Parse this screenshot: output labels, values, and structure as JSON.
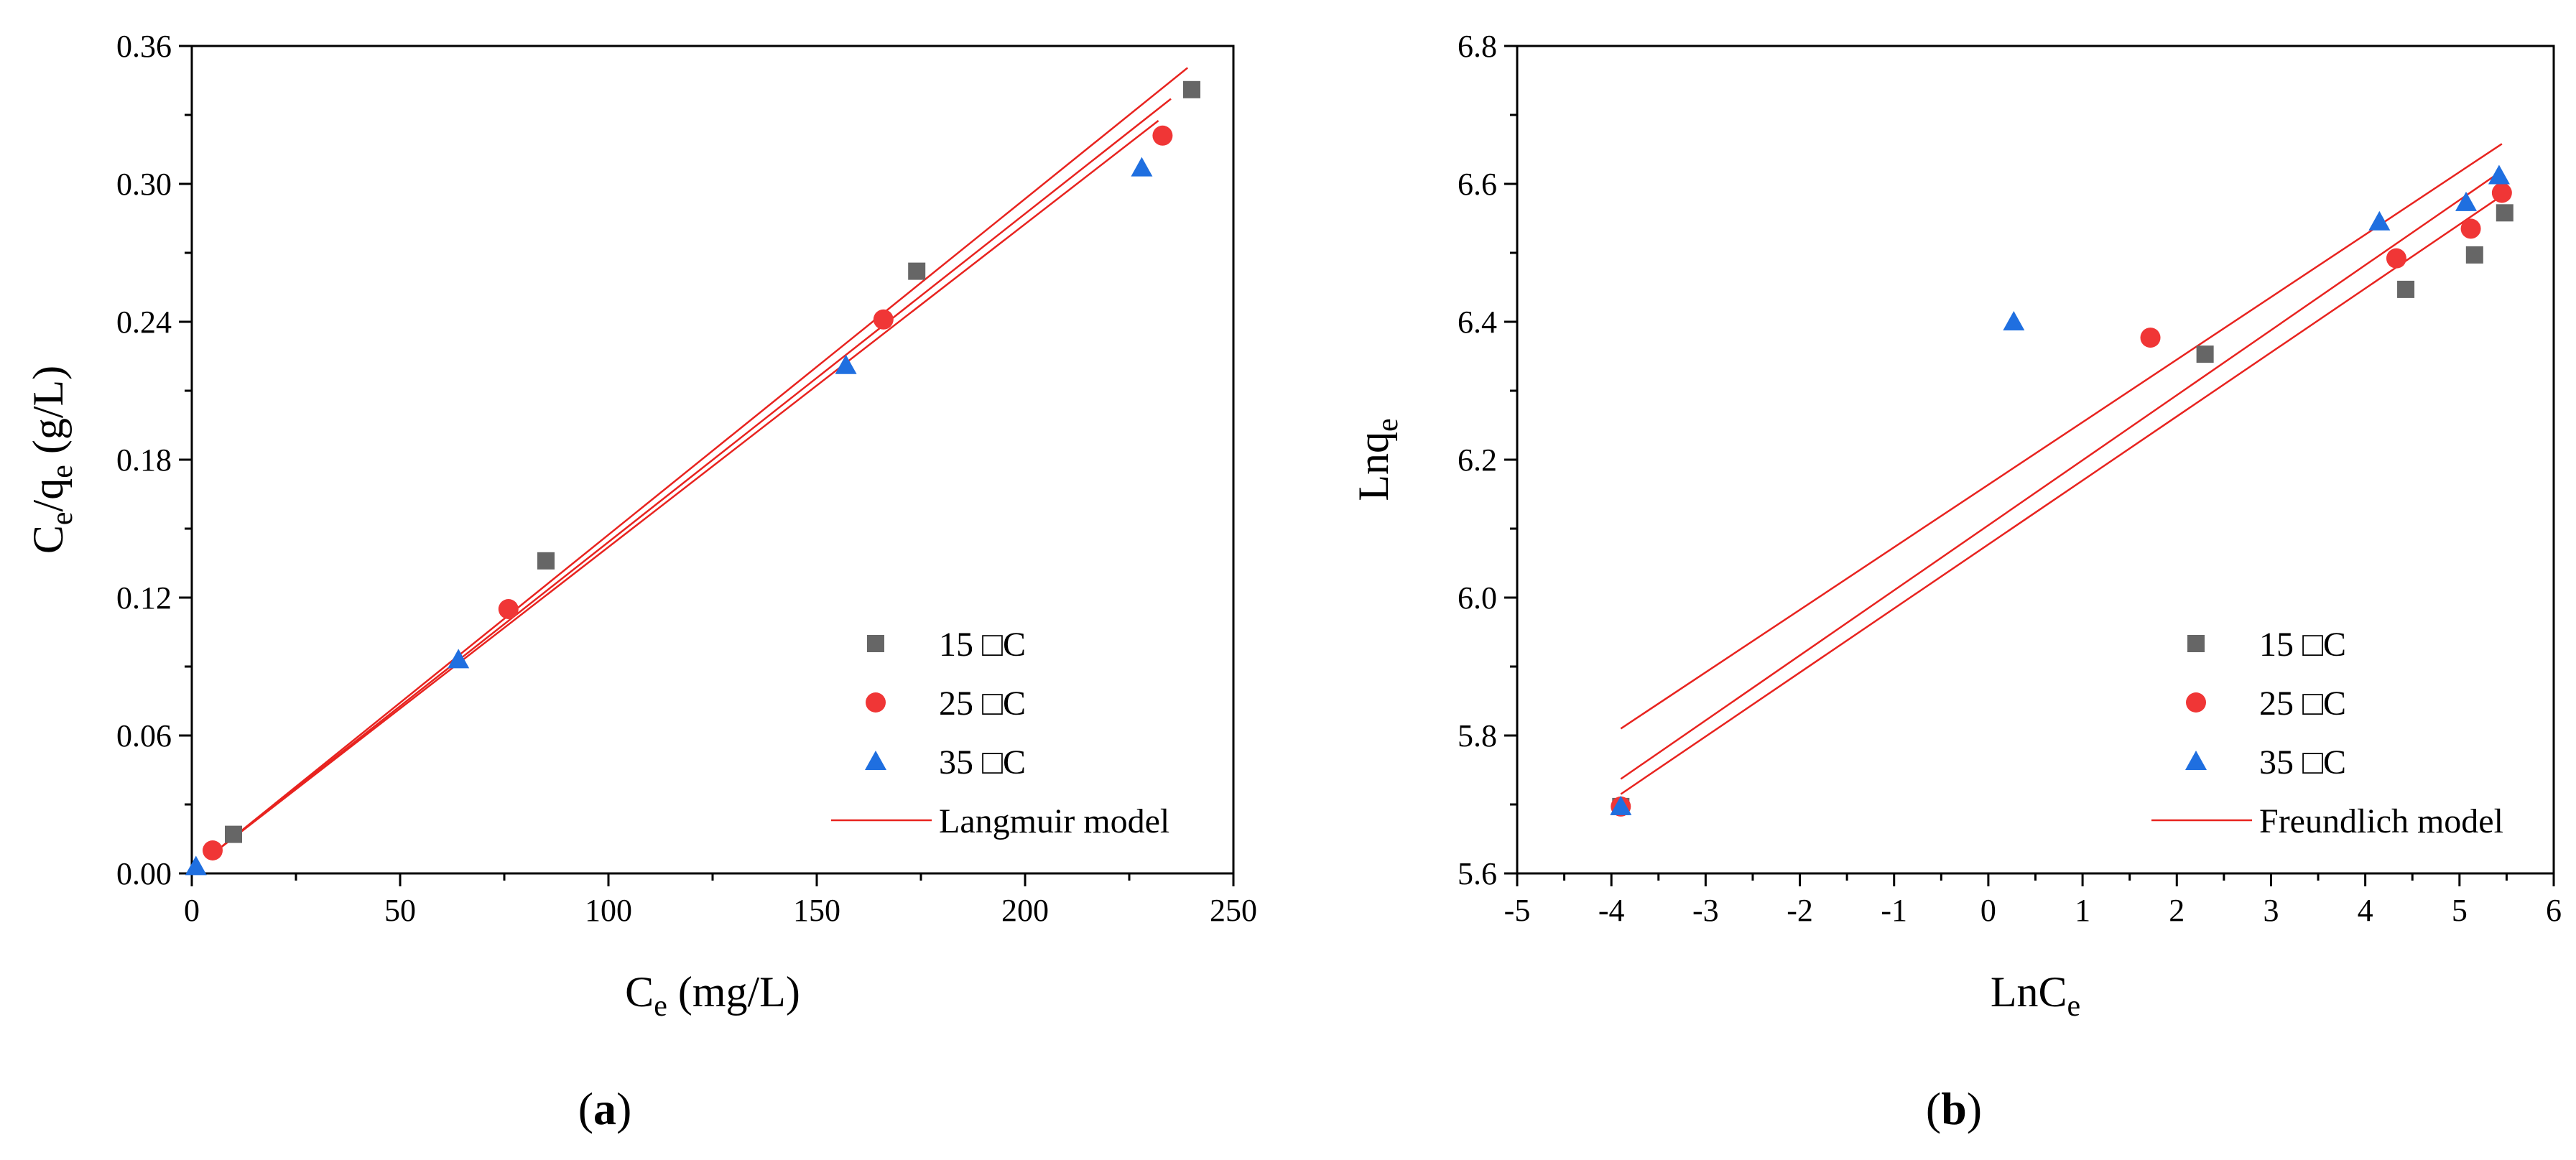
{
  "chart_data": [
    {
      "type": "scatter",
      "panel_label": "a",
      "title": "",
      "xlabel": {
        "main": "C",
        "sub": "e",
        "rest": " (mg/L)"
      },
      "ylabel": {
        "p1": "C",
        "s1": "e",
        "p2": "/q",
        "s2": "e",
        "p3": " (g/L)"
      },
      "xlim": [
        0,
        250
      ],
      "ylim": [
        0,
        0.36
      ],
      "xticks": [
        0,
        50,
        100,
        150,
        200,
        250
      ],
      "xtick_labels": [
        "0",
        "50",
        "100",
        "150",
        "200",
        "250"
      ],
      "yticks": [
        0,
        0.06,
        0.12,
        0.18,
        0.24,
        0.3,
        0.36
      ],
      "ytick_labels": [
        "0.00",
        "0.06",
        "0.12",
        "0.18",
        "0.24",
        "0.30",
        "0.36"
      ],
      "grid": false,
      "legend_position": "bottom-right",
      "series": [
        {
          "name": "15 □C",
          "marker": "square",
          "color": "#666666",
          "x": [
            10,
            85,
            174,
            240
          ],
          "y": [
            0.017,
            0.136,
            0.262,
            0.341
          ]
        },
        {
          "name": "25 □C",
          "marker": "circle",
          "color": "#f03636",
          "x": [
            5,
            76,
            166,
            233
          ],
          "y": [
            0.01,
            0.115,
            0.241,
            0.321
          ]
        },
        {
          "name": "35 □C",
          "marker": "triangle",
          "color": "#1f6fe0",
          "x": [
            1,
            64,
            157,
            228
          ],
          "y": [
            0.003,
            0.093,
            0.221,
            0.307
          ]
        }
      ],
      "fits": [
        {
          "x": [
            5,
            239
          ],
          "y": [
            0.0085,
            0.3505
          ]
        },
        {
          "x": [
            5,
            235
          ],
          "y": [
            0.0085,
            0.337
          ]
        },
        {
          "x": [
            5,
            232
          ],
          "y": [
            0.0085,
            0.3275
          ]
        }
      ],
      "fit_legend": "Langmuir model",
      "fit_color": "#e8231f"
    },
    {
      "type": "scatter",
      "panel_label": "b",
      "title": "",
      "xlabel": {
        "main": "LnC",
        "sub": "e",
        "rest": ""
      },
      "ylabel": {
        "main": "Lnq",
        "sub": "e"
      },
      "xlim": [
        -5,
        6
      ],
      "ylim": [
        5.6,
        6.8
      ],
      "xticks": [
        -5,
        -4,
        -3,
        -2,
        -1,
        0,
        1,
        2,
        3,
        4,
        5,
        6
      ],
      "xtick_labels": [
        "-5",
        "-4",
        "-3",
        "-2",
        "-1",
        "0",
        "1",
        "2",
        "3",
        "4",
        "5",
        "6"
      ],
      "yticks": [
        5.6,
        5.8,
        6.0,
        6.2,
        6.4,
        6.6,
        6.8
      ],
      "ytick_labels": [
        "5.6",
        "5.8",
        "6.0",
        "6.2",
        "6.4",
        "6.6",
        "6.8"
      ],
      "grid": false,
      "legend_position": "bottom-right",
      "series": [
        {
          "name": "15 □C",
          "marker": "square",
          "color": "#666666",
          "x": [
            -3.9,
            2.3,
            4.43,
            5.16,
            5.48
          ],
          "y": [
            5.697,
            6.353,
            6.447,
            6.497,
            6.558
          ]
        },
        {
          "name": "25 □C",
          "marker": "circle",
          "color": "#f03636",
          "x": [
            -3.9,
            1.72,
            4.33,
            5.12,
            5.45
          ],
          "y": [
            5.697,
            6.377,
            6.492,
            6.535,
            6.587
          ]
        },
        {
          "name": "35 □C",
          "marker": "triangle",
          "color": "#1f6fe0",
          "x": [
            -3.9,
            0.27,
            4.15,
            5.07,
            5.42
          ],
          "y": [
            5.697,
            6.4,
            6.545,
            6.573,
            6.612
          ]
        }
      ],
      "fits": [
        {
          "x": [
            -3.9,
            5.45
          ],
          "y": [
            5.81,
            6.658
          ]
        },
        {
          "x": [
            -3.9,
            5.45
          ],
          "y": [
            5.737,
            6.619
          ]
        },
        {
          "x": [
            -3.9,
            5.45
          ],
          "y": [
            5.715,
            6.583
          ]
        }
      ],
      "fit_legend": "Freundlich model",
      "fit_color": "#e8231f"
    }
  ]
}
